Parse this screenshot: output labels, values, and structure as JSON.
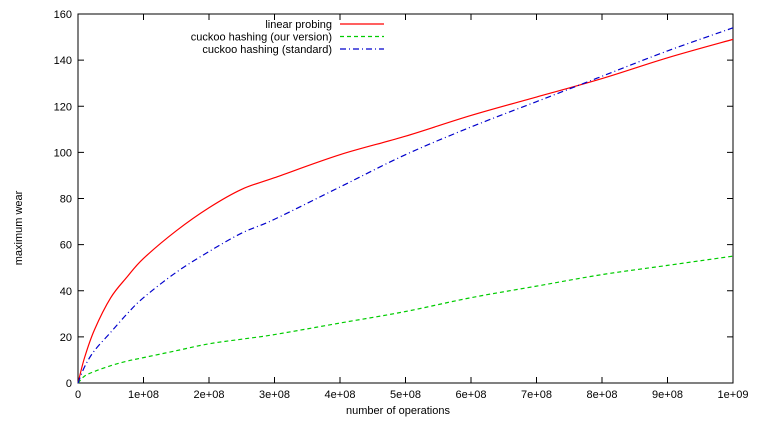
{
  "chart_data": {
    "type": "line",
    "title": "",
    "xlabel": "number of operations",
    "ylabel": "maximum wear",
    "xlim": [
      0,
      1000000000
    ],
    "ylim": [
      0,
      160
    ],
    "grid": false,
    "legend_position": "top-right",
    "x_ticks": [
      0,
      100000000,
      200000000,
      300000000,
      400000000,
      500000000,
      600000000,
      700000000,
      800000000,
      900000000,
      1000000000
    ],
    "x_tick_labels": [
      "0",
      "1e+08",
      "2e+08",
      "3e+08",
      "4e+08",
      "5e+08",
      "6e+08",
      "7e+08",
      "8e+08",
      "9e+08",
      "1e+09"
    ],
    "y_ticks": [
      0,
      20,
      40,
      60,
      80,
      100,
      120,
      140,
      160
    ],
    "y_tick_labels": [
      "0",
      "20",
      "40",
      "60",
      "80",
      "100",
      "120",
      "140",
      "160"
    ],
    "x": [
      0,
      10000000,
      25000000,
      50000000,
      75000000,
      100000000,
      150000000,
      200000000,
      250000000,
      300000000,
      400000000,
      500000000,
      600000000,
      700000000,
      800000000,
      900000000,
      1000000000
    ],
    "series": [
      {
        "name": "linear probing",
        "color": "#ff0000",
        "dash": "solid",
        "values": [
          0,
          11,
          23,
          37,
          46,
          54,
          66,
          76,
          84,
          89,
          99,
          107,
          116,
          124,
          132,
          141,
          149
        ]
      },
      {
        "name": "cuckoo hashing (our version)",
        "color": "#00cc00",
        "dash": "dashed",
        "values": [
          0,
          3,
          5,
          7.5,
          9.5,
          11,
          14,
          17,
          19,
          21,
          26,
          31,
          37,
          42,
          47,
          51,
          55
        ]
      },
      {
        "name": "cuckoo hashing (standard)",
        "color": "#0000cc",
        "dash": "dash-dot",
        "values": [
          0,
          7,
          14,
          22,
          30,
          37,
          48,
          57,
          65,
          71,
          85,
          99,
          111,
          122,
          133,
          144,
          154
        ]
      }
    ]
  }
}
